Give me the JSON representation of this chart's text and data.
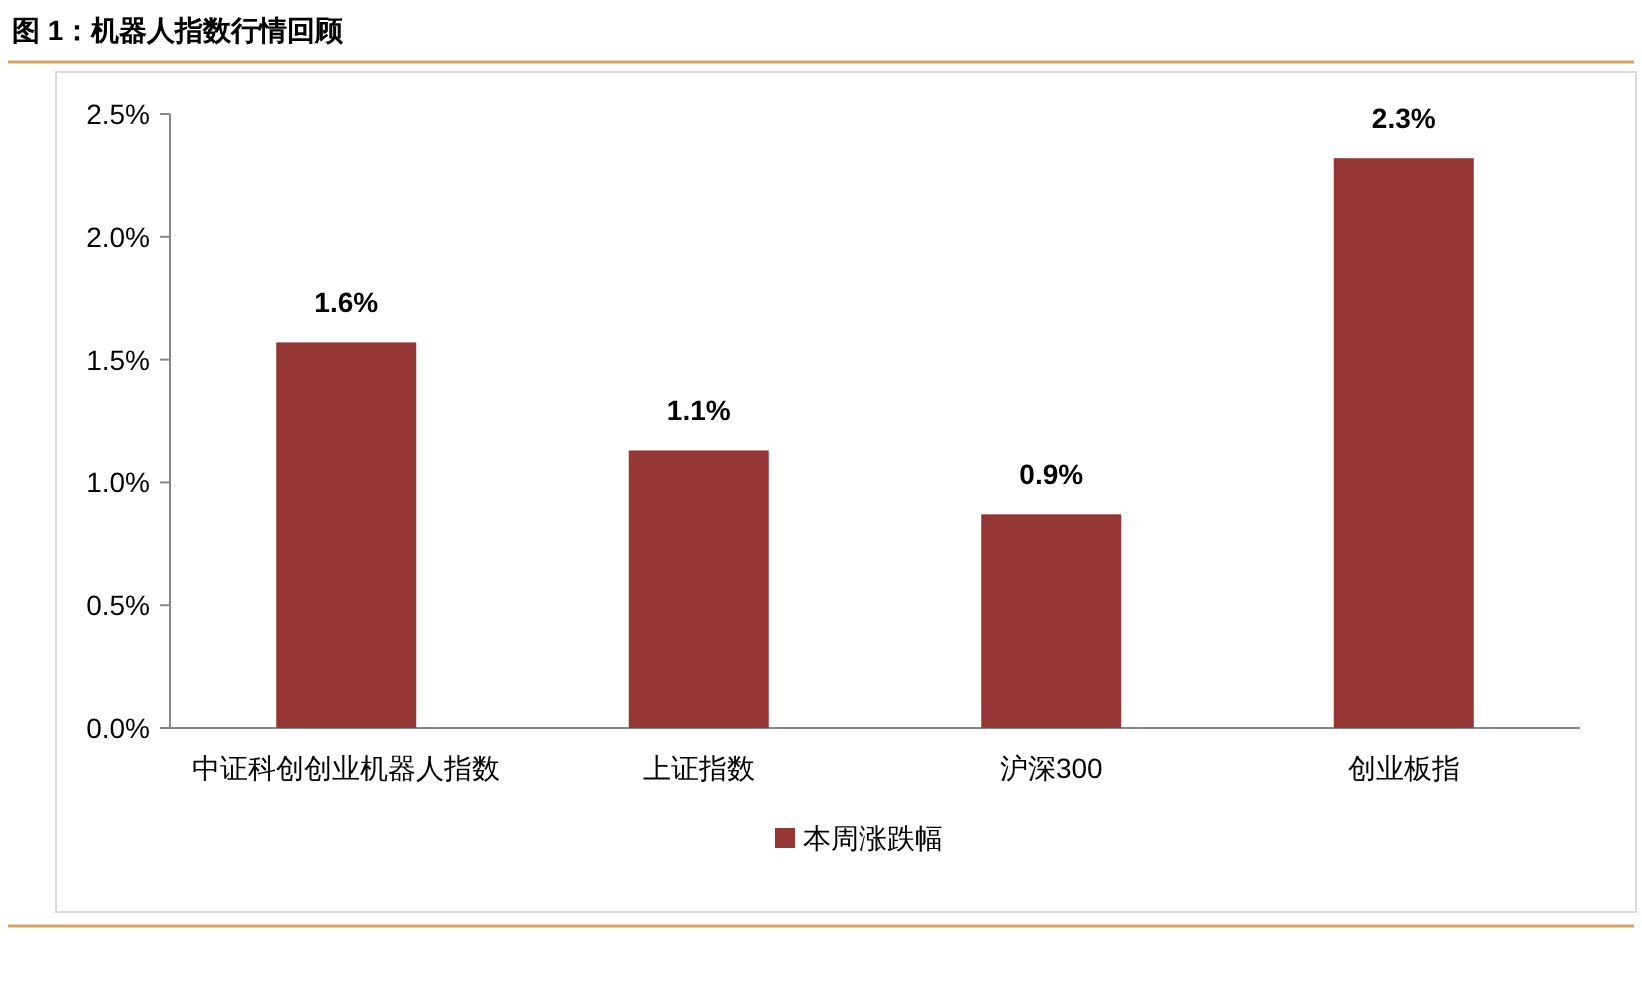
{
  "chart_data": {
    "type": "bar",
    "title": "图 1：机器人指数行情回顾",
    "categories": [
      "中证科创创业机器人指数",
      "上证指数",
      "沪深300",
      "创业板指"
    ],
    "series": [
      {
        "name": "本周涨跌幅",
        "color": "#943634",
        "values": [
          1.57,
          1.13,
          0.87,
          2.32
        ],
        "value_labels": [
          "1.6%",
          "1.1%",
          "0.9%",
          "2.3%"
        ]
      }
    ],
    "ylim": [
      0,
      2.5
    ],
    "yticks": [
      {
        "value": 0,
        "label": "0.0%"
      },
      {
        "value": 0.5,
        "label": "0.5%"
      },
      {
        "value": 1,
        "label": "1.0%"
      },
      {
        "value": 1.5,
        "label": "1.5%"
      },
      {
        "value": 2,
        "label": "2.0%"
      },
      {
        "value": 2.5,
        "label": "2.5%"
      }
    ],
    "legend": "bottom"
  }
}
